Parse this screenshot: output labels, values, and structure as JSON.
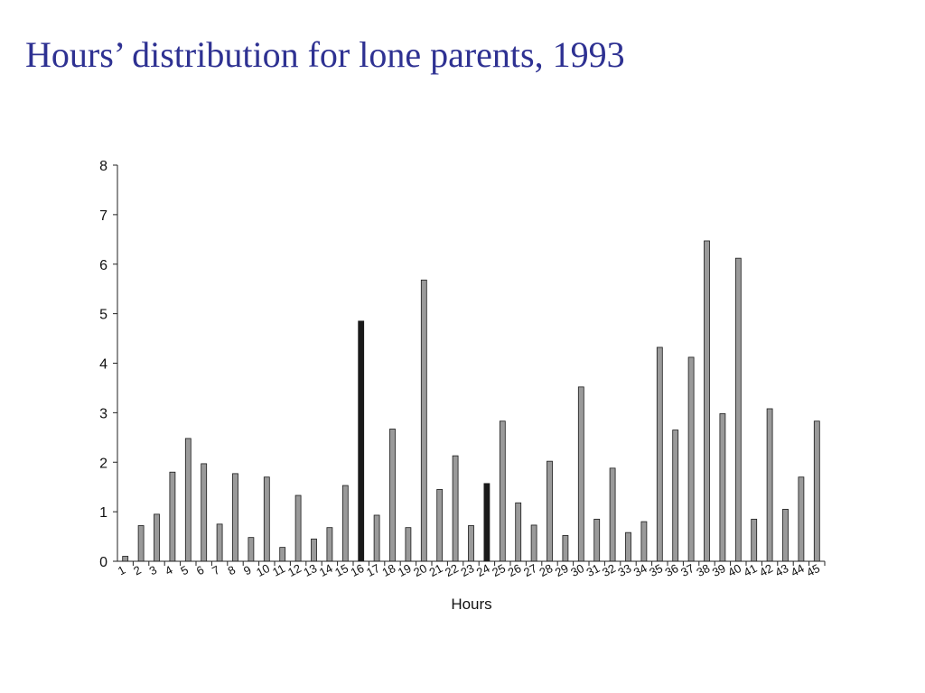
{
  "slide": {
    "title": "Hours’ distribution for lone parents, 1993"
  },
  "colors": {
    "title": "#2e3192",
    "bar_default": "#9a9a9a",
    "bar_highlight": "#1a1a1a",
    "axis": "#222222"
  },
  "chart_data": {
    "type": "bar",
    "title": "",
    "xlabel": "Hours",
    "ylabel": "",
    "ylim": [
      0,
      8
    ],
    "y_ticks": [
      0,
      1,
      2,
      3,
      4,
      5,
      6,
      7,
      8
    ],
    "grid": false,
    "legend": "none",
    "categories": [
      "1",
      "2",
      "3",
      "4",
      "5",
      "6",
      "7",
      "8",
      "9",
      "10",
      "11",
      "12",
      "13",
      "14",
      "15",
      "16",
      "17",
      "18",
      "19",
      "20",
      "21",
      "22",
      "23",
      "24",
      "25",
      "26",
      "27",
      "28",
      "29",
      "30",
      "31",
      "32",
      "33",
      "34",
      "35",
      "36",
      "37",
      "38",
      "39",
      "40",
      "41",
      "42",
      "43",
      "44",
      "45"
    ],
    "values": [
      0.1,
      0.72,
      0.95,
      1.8,
      2.48,
      1.97,
      0.75,
      1.77,
      0.48,
      1.7,
      0.28,
      1.33,
      0.45,
      0.68,
      1.53,
      4.85,
      0.93,
      2.67,
      0.68,
      5.68,
      1.45,
      2.13,
      0.72,
      1.57,
      2.83,
      1.18,
      0.73,
      2.02,
      0.52,
      3.52,
      0.85,
      1.88,
      0.58,
      0.8,
      4.32,
      2.65,
      4.12,
      6.47,
      2.98,
      6.12,
      0.85,
      3.08,
      1.05,
      1.7,
      2.83
    ],
    "highlighted_categories": [
      "16",
      "24"
    ]
  }
}
